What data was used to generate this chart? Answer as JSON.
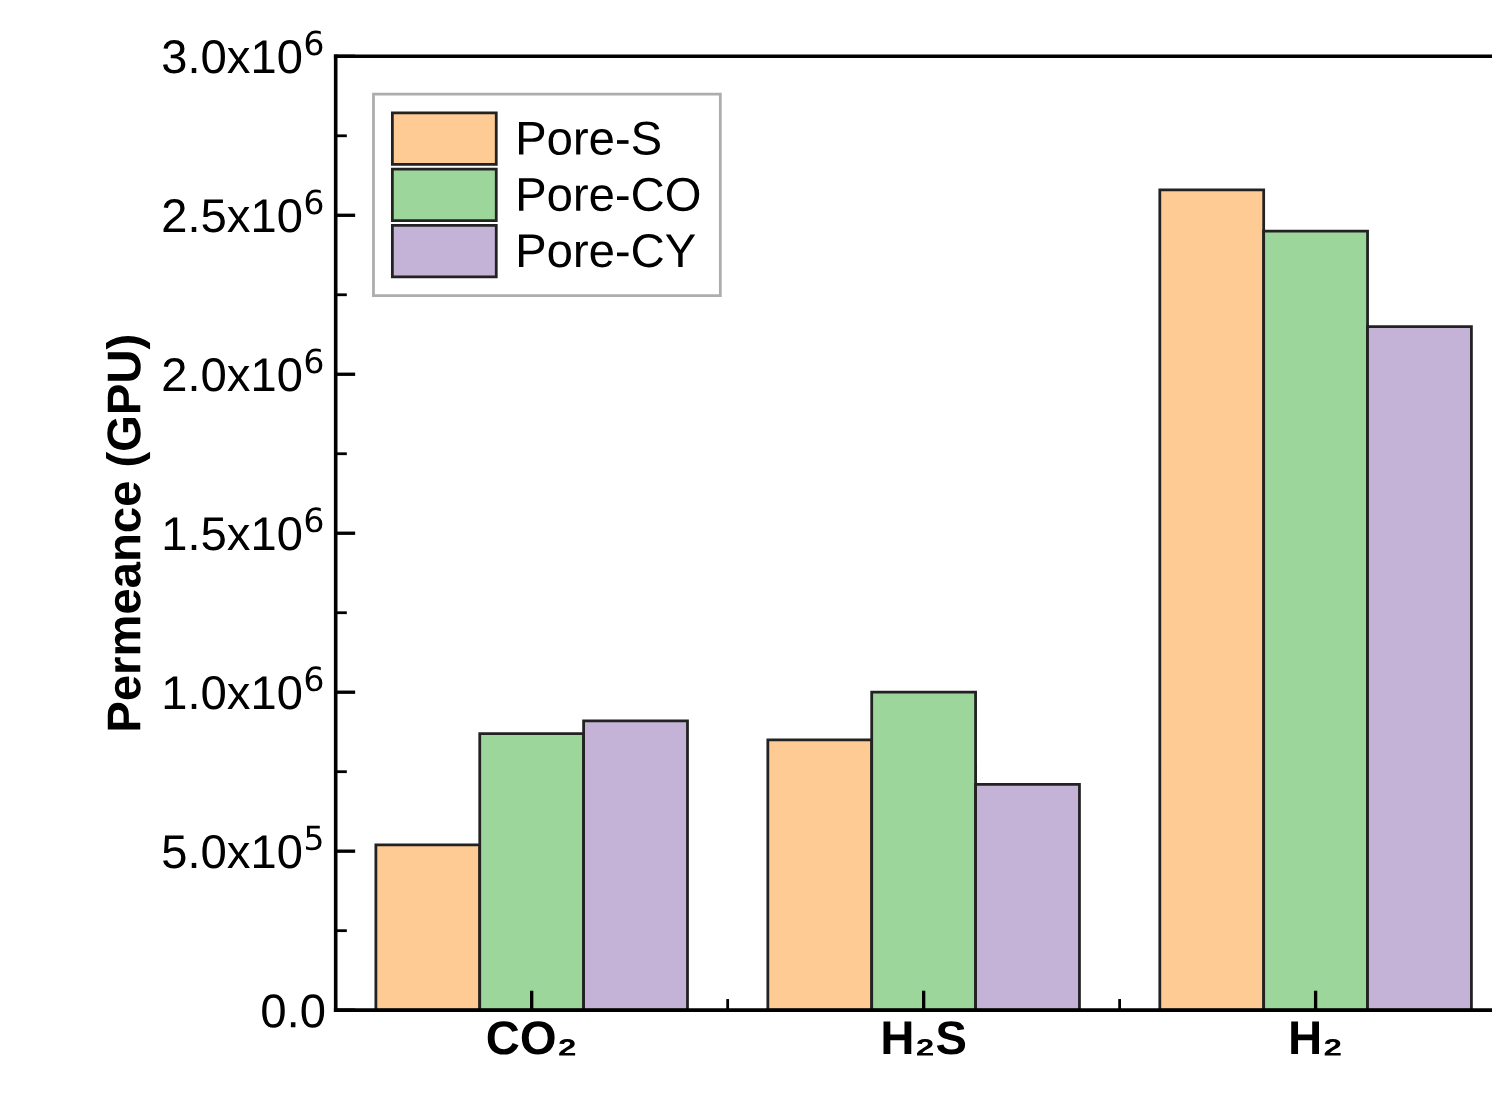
{
  "chart_data": {
    "type": "bar",
    "ylabel": "Permeance (GPU)",
    "categories": [
      "CO₂",
      "H₂S",
      "H₂"
    ],
    "series": [
      {
        "name": "Pore-S",
        "color": "#fdcb93",
        "values": [
          520000,
          850000,
          2580000
        ]
      },
      {
        "name": "Pore-CO",
        "color": "#9dd69b",
        "values": [
          870000,
          1000000,
          2450000
        ]
      },
      {
        "name": "Pore-CY",
        "color": "#c5b3d7",
        "values": [
          910000,
          710000,
          2150000
        ]
      }
    ],
    "ylim": [
      0,
      3000000
    ],
    "yticks": [
      {
        "value": 0,
        "label": "0.0"
      },
      {
        "value": 500000,
        "label": "5.0x10$^{5}$"
      },
      {
        "value": 1000000,
        "label": "1.0x10$^{6}$"
      },
      {
        "value": 1500000,
        "label": "1.5x10$^{6}$"
      },
      {
        "value": 2000000,
        "label": "2.0x10$^{6}$"
      },
      {
        "value": 2500000,
        "label": "2.5x10$^{6}$"
      },
      {
        "value": 3000000,
        "label": "3.0x10$^{6}$"
      }
    ],
    "grid": false,
    "legend": "top left"
  }
}
